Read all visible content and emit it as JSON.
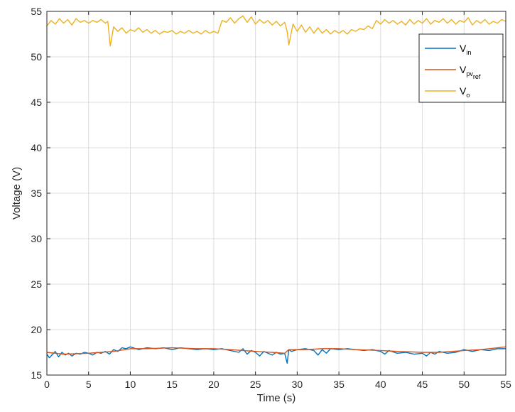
{
  "chart_data": {
    "type": "line",
    "xlabel": "Time (s)",
    "ylabel": "Voltage (V)",
    "xlim": [
      0,
      55
    ],
    "ylim": [
      15,
      55
    ],
    "xticks": [
      0,
      5,
      10,
      15,
      20,
      25,
      30,
      35,
      40,
      45,
      50,
      55
    ],
    "yticks": [
      15,
      20,
      25,
      30,
      35,
      40,
      45,
      50,
      55
    ],
    "grid": true,
    "legend_position": "top-right",
    "legend": [
      {
        "base": "V",
        "sub": "in"
      },
      {
        "base": "V",
        "sub": "pv",
        "subsub": "ref"
      },
      {
        "base": "V",
        "sub": "o"
      }
    ],
    "series": [
      {
        "color": "#0072BD",
        "x": [
          0,
          0.3,
          0.6,
          1.0,
          1.4,
          1.8,
          2.2,
          2.6,
          3.0,
          3.5,
          4.0,
          4.5,
          5.0,
          5.5,
          6.0,
          6.5,
          7.0,
          7.5,
          8.0,
          8.5,
          9.0,
          9.5,
          10.0,
          11,
          12,
          13,
          14,
          15,
          16,
          17,
          18,
          19,
          20,
          21,
          22,
          23,
          23.5,
          24,
          24.5,
          25,
          25.5,
          26,
          26.5,
          27,
          27.5,
          28,
          28.5,
          28.8,
          29.0,
          29.3,
          30,
          31,
          32,
          32.5,
          33,
          33.5,
          34,
          35,
          36,
          37,
          38,
          39,
          40,
          40.5,
          41,
          42,
          43,
          44,
          45,
          45.5,
          46,
          46.5,
          47,
          48,
          49,
          50,
          51,
          52,
          53,
          54,
          55
        ],
        "values": [
          17.3,
          16.9,
          17.2,
          17.6,
          17.0,
          17.5,
          17.2,
          17.4,
          17.1,
          17.4,
          17.3,
          17.5,
          17.4,
          17.2,
          17.5,
          17.4,
          17.6,
          17.3,
          17.8,
          17.6,
          18.0,
          17.9,
          18.1,
          17.8,
          18.0,
          17.9,
          18.0,
          17.8,
          18.0,
          17.9,
          17.8,
          17.9,
          17.8,
          17.9,
          17.7,
          17.5,
          17.9,
          17.3,
          17.7,
          17.5,
          17.1,
          17.6,
          17.4,
          17.2,
          17.5,
          17.3,
          17.4,
          16.3,
          17.8,
          17.6,
          17.8,
          17.9,
          17.7,
          17.2,
          17.8,
          17.4,
          17.9,
          17.8,
          17.9,
          17.8,
          17.7,
          17.8,
          17.6,
          17.3,
          17.7,
          17.4,
          17.5,
          17.3,
          17.4,
          17.1,
          17.5,
          17.3,
          17.6,
          17.4,
          17.5,
          17.8,
          17.6,
          17.8,
          17.7,
          17.9,
          17.9
        ]
      },
      {
        "color": "#D95319",
        "x": [
          0,
          2,
          5,
          8,
          10,
          12,
          15,
          18,
          20,
          22,
          25,
          27,
          28.5,
          29,
          31,
          33,
          35,
          37,
          40,
          42,
          45,
          47,
          50,
          52,
          55
        ],
        "values": [
          17.5,
          17.3,
          17.4,
          17.6,
          17.9,
          17.9,
          18.0,
          17.9,
          17.9,
          17.8,
          17.6,
          17.5,
          17.4,
          17.8,
          17.8,
          17.9,
          17.9,
          17.8,
          17.7,
          17.6,
          17.5,
          17.5,
          17.7,
          17.8,
          18.1
        ]
      },
      {
        "color": "#EDB120",
        "x": [
          0,
          0.5,
          1,
          1.5,
          2,
          2.5,
          3,
          3.5,
          4,
          4.5,
          5,
          5.5,
          6,
          6.5,
          7,
          7.3,
          7.6,
          8,
          8.5,
          9,
          9.5,
          10,
          10.5,
          11,
          11.5,
          12,
          12.5,
          13,
          13.5,
          14,
          14.5,
          15,
          15.5,
          16,
          16.5,
          17,
          17.5,
          18,
          18.5,
          19,
          19.5,
          20,
          20.5,
          21,
          21.5,
          22,
          22.5,
          23,
          23.5,
          24,
          24.5,
          25,
          25.5,
          26,
          26.5,
          27,
          27.5,
          28,
          28.5,
          28.8,
          29,
          29.5,
          30,
          30.5,
          31,
          31.5,
          32,
          32.5,
          33,
          33.5,
          34,
          34.5,
          35,
          35.5,
          36,
          36.5,
          37,
          37.5,
          38,
          38.5,
          39,
          39.5,
          40,
          40.5,
          41,
          41.5,
          42,
          42.5,
          43,
          43.5,
          44,
          44.5,
          45,
          45.5,
          46,
          46.5,
          47,
          47.5,
          48,
          48.5,
          49,
          49.5,
          50,
          50.5,
          51,
          51.5,
          52,
          52.5,
          53,
          53.5,
          54,
          54.5,
          55
        ],
        "values": [
          53.4,
          54.0,
          53.6,
          54.2,
          53.7,
          54.1,
          53.5,
          54.2,
          53.8,
          54.0,
          53.7,
          54.0,
          53.8,
          54.1,
          53.7,
          53.9,
          51.2,
          53.3,
          52.8,
          53.2,
          52.6,
          53.0,
          52.8,
          53.2,
          52.7,
          53.0,
          52.6,
          52.9,
          52.5,
          52.8,
          52.7,
          52.9,
          52.5,
          52.8,
          52.6,
          52.9,
          52.6,
          52.8,
          52.5,
          52.9,
          52.6,
          52.8,
          52.6,
          54.0,
          53.8,
          54.3,
          53.7,
          54.2,
          54.5,
          53.8,
          54.4,
          53.6,
          54.1,
          53.7,
          54.0,
          53.5,
          53.9,
          53.4,
          53.8,
          52.8,
          51.3,
          53.6,
          52.8,
          53.5,
          52.7,
          53.3,
          52.6,
          53.2,
          52.6,
          53.0,
          52.5,
          52.9,
          52.6,
          52.9,
          52.5,
          53.0,
          52.8,
          53.1,
          53.0,
          53.4,
          53.1,
          54.0,
          53.6,
          54.1,
          53.7,
          54.0,
          53.6,
          53.9,
          53.5,
          54.1,
          53.6,
          54.0,
          53.7,
          54.2,
          53.6,
          54.0,
          53.8,
          54.2,
          53.7,
          54.1,
          53.6,
          54.0,
          53.8,
          54.3,
          53.5,
          54.0,
          53.7,
          54.1,
          53.6,
          53.9,
          53.7,
          54.1,
          53.9
        ]
      }
    ]
  }
}
